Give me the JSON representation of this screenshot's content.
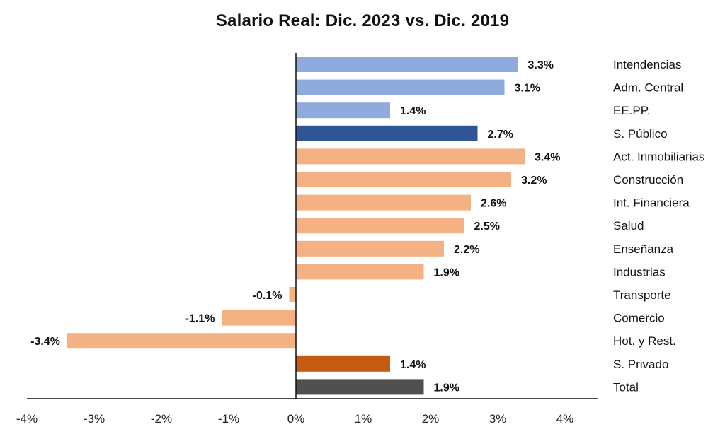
{
  "chart_data": {
    "type": "bar",
    "orientation": "horizontal",
    "title": "Salario Real: Dic. 2023 vs. Dic. 2019",
    "xlabel": "",
    "ylabel": "",
    "xlim": [
      -4,
      4
    ],
    "x_ticks": [
      "-4%",
      "-3%",
      "-2%",
      "-1%",
      "0%",
      "1%",
      "2%",
      "3%",
      "4%"
    ],
    "x_tick_values": [
      -4,
      -3,
      -2,
      -1,
      0,
      1,
      2,
      3,
      4
    ],
    "grid": false,
    "legend": "none",
    "value_suffix": "%",
    "categories": [
      "Intendencias",
      "Adm. Central",
      "EE.PP.",
      "S. Público",
      "Act. Inmobiliarias",
      "Construcción",
      "Int. Financiera",
      "Salud",
      "Enseñanza",
      "Industrias",
      "Transporte",
      "Comercio",
      "Hot. y Rest.",
      "S. Privado",
      "Total"
    ],
    "values": [
      3.3,
      3.1,
      1.4,
      2.7,
      3.4,
      3.2,
      2.6,
      2.5,
      2.2,
      1.9,
      -0.1,
      -1.1,
      -3.4,
      1.4,
      1.9
    ],
    "value_labels": [
      "3.3%",
      "3.1%",
      "1.4%",
      "2.7%",
      "3.4%",
      "3.2%",
      "2.6%",
      "2.5%",
      "2.2%",
      "1.9%",
      "-0.1%",
      "-1.1%",
      "-3.4%",
      "1.4%",
      "1.9%"
    ],
    "groups": [
      "public",
      "public",
      "public",
      "public-total",
      "private",
      "private",
      "private",
      "private",
      "private",
      "private",
      "private",
      "private",
      "private",
      "private-total",
      "total"
    ],
    "colors": {
      "public": "#8FAADC",
      "public-total": "#2F5597",
      "private": "#F4B183",
      "private-total": "#C55A11",
      "total": "#505050"
    }
  }
}
